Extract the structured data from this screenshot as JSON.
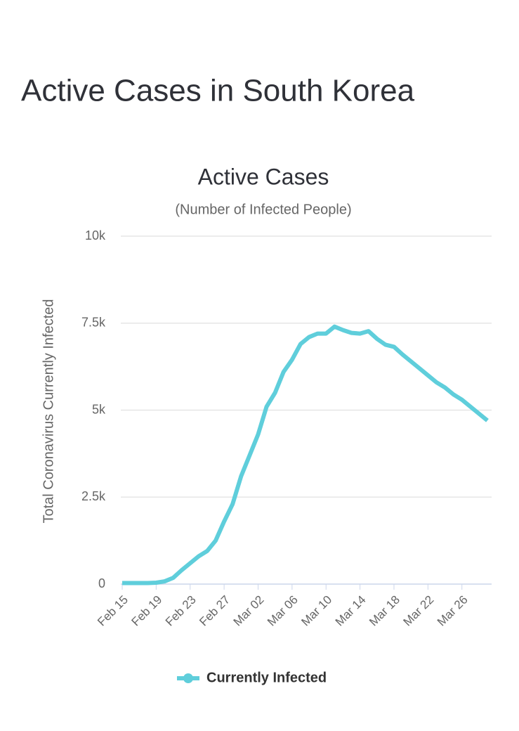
{
  "header": {
    "title": "Active Cases in South Korea"
  },
  "chart_data": {
    "type": "line",
    "title": "Active Cases",
    "subtitle": "(Number of Infected People)",
    "y_label": "Total Coronavirus Currently Infected",
    "categories": [
      "Feb 15",
      null,
      null,
      null,
      "Feb 19",
      null,
      null,
      null,
      "Feb 23",
      null,
      null,
      null,
      "Feb 27",
      null,
      null,
      null,
      "Mar 02",
      null,
      null,
      null,
      "Mar 06",
      null,
      null,
      null,
      "Mar 10",
      null,
      null,
      null,
      "Mar 14",
      null,
      null,
      null,
      "Mar 18",
      null,
      null,
      null,
      "Mar 22",
      null,
      null,
      null,
      "Mar 26",
      null,
      null,
      null
    ],
    "series": [
      {
        "name": "Currently Infected",
        "color": "#5fcedb",
        "values": [
          30,
          30,
          30,
          30,
          40,
          80,
          180,
          400,
          600,
          800,
          950,
          1250,
          1800,
          2300,
          3100,
          3700,
          4300,
          5100,
          5500,
          6100,
          6450,
          6900,
          7100,
          7200,
          7200,
          7400,
          7300,
          7220,
          7200,
          7270,
          7050,
          6880,
          6820,
          6600,
          6400,
          6200,
          6000,
          5800,
          5650,
          5450,
          5300,
          5100,
          4900,
          4700
        ]
      }
    ],
    "ylim": [
      0,
      10000
    ],
    "yticks": [
      0,
      {
        "value": 2500,
        "label": "2.5k"
      },
      {
        "value": 5000,
        "label": "5k"
      },
      {
        "value": 7500,
        "label": "7.5k"
      },
      {
        "value": 10000,
        "label": "10k"
      }
    ],
    "grid": true,
    "legend": "bottom"
  }
}
